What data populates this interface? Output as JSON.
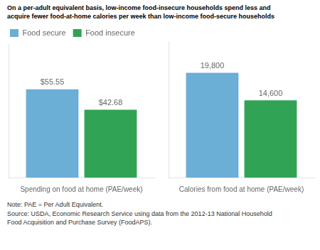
{
  "chart_data": [
    {
      "type": "bar",
      "title": [
        "On a per-adult equivalent basis, low-income food-insecure households spend less and",
        "acquire fewer food-at-home calories per week than low-income food-secure households"
      ],
      "categories": [
        "Spending on food at home (PAE/week)"
      ],
      "series": [
        {
          "name": "Food secure",
          "color": "#6BAED6",
          "values": [
            55.55
          ],
          "value_labels": [
            "$55.55"
          ]
        },
        {
          "name": "Food insecure",
          "color": "#31A354",
          "values": [
            42.68
          ],
          "value_labels": [
            "$42.68"
          ]
        }
      ],
      "ylim": [
        0,
        84
      ],
      "yticks": [],
      "tick_labels": "x",
      "grid": false,
      "legend": "upper left",
      "data_labels": true
    },
    {
      "type": "bar",
      "categories": [
        "Calories from food at home (PAE/week)"
      ],
      "series": [
        {
          "name": "Food secure",
          "color": "#6BAED6",
          "values": [
            19800
          ],
          "value_labels": [
            "19,800"
          ]
        },
        {
          "name": "Food insecure",
          "color": "#31A354",
          "values": [
            14600
          ],
          "value_labels": [
            "14,600"
          ]
        }
      ],
      "ylim": [
        0,
        25760
      ],
      "yticks": [],
      "tick_labels": "x",
      "grid": false,
      "data_labels": true,
      "annotations": [
        "Note: PAE = Per Adult Equivalent.\nSource: USDA, Economic Research Service using data from the 2012-13 National Household\nFood Acquisition and Purchase Survey (FoodAPS)."
      ]
    }
  ]
}
